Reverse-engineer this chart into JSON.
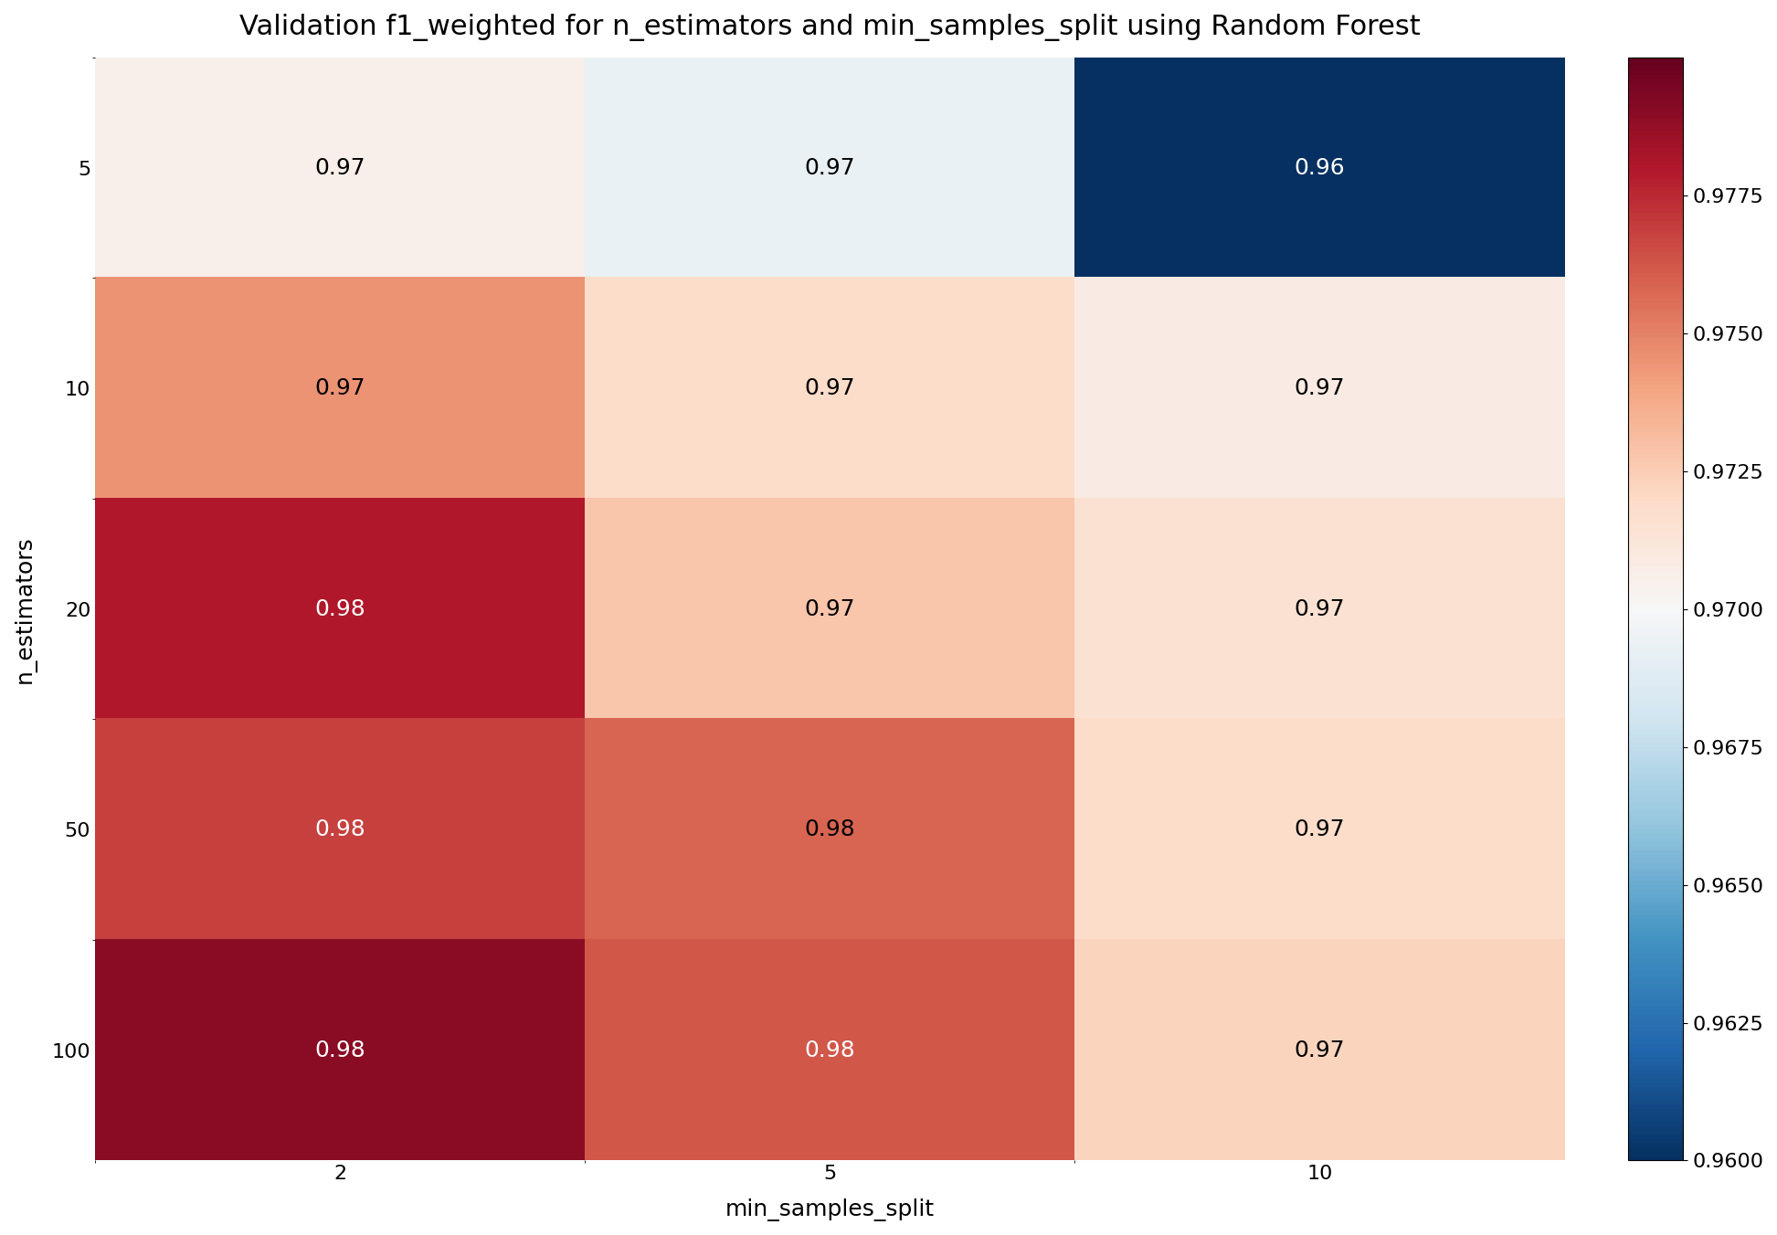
{
  "title": "Validation f1_weighted for n_estimators and min_samples_split using Random Forest",
  "xlabel": "min_samples_split",
  "ylabel": "n_estimators",
  "x_labels": [
    "2",
    "5",
    "10"
  ],
  "y_labels": [
    "5",
    "10",
    "20",
    "50",
    "100"
  ],
  "values": [
    [
      0.9705,
      0.9693,
      0.96
    ],
    [
      0.9745,
      0.9718,
      0.9708
    ],
    [
      0.978,
      0.9728,
      0.9715
    ],
    [
      0.9768,
      0.9758,
      0.9718
    ],
    [
      0.979,
      0.9762,
      0.9722
    ]
  ],
  "display_values": [
    [
      "0.97",
      "0.97",
      "0.96"
    ],
    [
      "0.97",
      "0.97",
      "0.97"
    ],
    [
      "0.98",
      "0.97",
      "0.97"
    ],
    [
      "0.98",
      "0.98",
      "0.97"
    ],
    [
      "0.98",
      "0.98",
      "0.97"
    ]
  ],
  "vmin": 0.96,
  "vcenter": 0.97,
  "vmax": 0.98,
  "cbar_ticks": [
    0.96,
    0.9625,
    0.965,
    0.9675,
    0.97,
    0.9725,
    0.975,
    0.9775
  ],
  "cmap": "RdBu_r",
  "title_fontsize": 22,
  "label_fontsize": 18,
  "tick_fontsize": 16,
  "annot_fontsize": 18,
  "figsize": [
    19.45,
    13.52
  ],
  "dpi": 100
}
